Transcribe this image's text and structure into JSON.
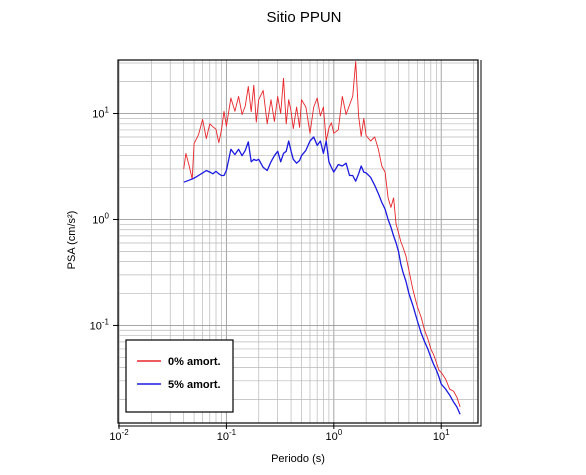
{
  "chart_data": {
    "type": "line",
    "title": "Sitio PPUN",
    "xlabel": "Periodo (s)",
    "ylabel": "PSA (cm/s²)",
    "xscale": "log",
    "yscale": "log",
    "xlim": [
      0.01,
      22
    ],
    "ylim": [
      0.012,
      32
    ],
    "grid": true,
    "legend_position": "bottom-left",
    "x_ticks": [
      {
        "base": "10",
        "exp": "-2"
      },
      {
        "base": "10",
        "exp": "-1"
      },
      {
        "base": "10",
        "exp": "0"
      },
      {
        "base": "10",
        "exp": "1"
      }
    ],
    "y_ticks": [
      {
        "base": "10",
        "exp": "-1"
      },
      {
        "base": "10",
        "exp": "0"
      },
      {
        "base": "10",
        "exp": "1"
      }
    ],
    "series": [
      {
        "name": "0% amort.",
        "color": "#e8262a",
        "x": [
          0.04,
          0.042,
          0.045,
          0.048,
          0.05,
          0.055,
          0.06,
          0.065,
          0.07,
          0.075,
          0.08,
          0.085,
          0.09,
          0.095,
          0.1,
          0.11,
          0.12,
          0.13,
          0.14,
          0.15,
          0.16,
          0.17,
          0.18,
          0.19,
          0.2,
          0.22,
          0.24,
          0.26,
          0.28,
          0.3,
          0.32,
          0.34,
          0.36,
          0.38,
          0.4,
          0.42,
          0.45,
          0.48,
          0.5,
          0.55,
          0.6,
          0.65,
          0.7,
          0.75,
          0.8,
          0.85,
          0.9,
          0.95,
          1.0,
          1.1,
          1.2,
          1.3,
          1.4,
          1.5,
          1.6,
          1.7,
          1.8,
          1.9,
          2.0,
          2.2,
          2.4,
          2.6,
          2.8,
          3.0,
          3.2,
          3.4,
          3.6,
          3.8,
          4.0,
          4.2,
          4.4,
          4.7,
          5.0,
          5.5,
          6.0,
          6.5,
          7.0,
          7.5,
          8.0,
          8.5,
          9.0,
          9.5,
          10.0,
          11.0,
          12.0,
          13.0,
          14.0,
          15.0
        ],
        "y": [
          3.0,
          4.2,
          3.2,
          2.4,
          5.2,
          6.3,
          8.8,
          5.8,
          8.0,
          7.5,
          7.1,
          5.3,
          7.0,
          10.5,
          7.6,
          14.0,
          10.5,
          14.5,
          9.8,
          11.8,
          18.0,
          10.4,
          18.5,
          8.3,
          13.5,
          16.5,
          8.0,
          13.5,
          8.4,
          14.5,
          10.0,
          21.5,
          8.0,
          13.5,
          10.5,
          7.2,
          11.5,
          7.4,
          13.5,
          11.5,
          6.5,
          11.5,
          14.0,
          9.5,
          11.5,
          5.5,
          7.3,
          8.2,
          6.5,
          7.0,
          14.5,
          9.8,
          12.0,
          14.5,
          31.0,
          9.5,
          6.1,
          9.0,
          6.2,
          5.5,
          6.0,
          4.6,
          3.2,
          2.8,
          1.6,
          1.3,
          1.6,
          0.9,
          0.75,
          0.62,
          0.55,
          0.45,
          0.33,
          0.21,
          0.15,
          0.12,
          0.09,
          0.075,
          0.06,
          0.053,
          0.045,
          0.038,
          0.036,
          0.031,
          0.025,
          0.024,
          0.021,
          0.017
        ]
      },
      {
        "name": "5% amort.",
        "color": "#1a1ae0",
        "x": [
          0.04,
          0.045,
          0.05,
          0.055,
          0.06,
          0.065,
          0.07,
          0.075,
          0.08,
          0.085,
          0.09,
          0.095,
          0.1,
          0.11,
          0.12,
          0.13,
          0.14,
          0.15,
          0.16,
          0.17,
          0.18,
          0.19,
          0.2,
          0.22,
          0.24,
          0.26,
          0.28,
          0.3,
          0.32,
          0.34,
          0.36,
          0.38,
          0.4,
          0.42,
          0.45,
          0.48,
          0.5,
          0.55,
          0.6,
          0.65,
          0.7,
          0.75,
          0.8,
          0.85,
          0.9,
          0.95,
          1.0,
          1.1,
          1.2,
          1.3,
          1.4,
          1.5,
          1.6,
          1.7,
          1.8,
          1.9,
          2.0,
          2.2,
          2.4,
          2.6,
          2.8,
          3.0,
          3.2,
          3.4,
          3.6,
          3.8,
          4.0,
          4.2,
          4.4,
          4.7,
          5.0,
          5.5,
          6.0,
          6.5,
          7.0,
          7.5,
          8.0,
          8.5,
          9.0,
          9.5,
          10.0,
          11.0,
          12.0,
          13.0,
          14.0,
          15.0
        ],
        "y": [
          2.25,
          2.35,
          2.45,
          2.6,
          2.75,
          2.9,
          2.8,
          2.7,
          2.85,
          2.7,
          2.6,
          2.6,
          2.9,
          4.6,
          4.1,
          4.6,
          4.0,
          4.5,
          5.4,
          3.5,
          3.7,
          3.6,
          3.7,
          3.1,
          2.9,
          3.5,
          4.0,
          4.4,
          3.5,
          4.2,
          4.4,
          5.5,
          4.4,
          3.7,
          3.4,
          3.6,
          4.0,
          4.5,
          5.5,
          6.0,
          5.0,
          5.5,
          4.2,
          5.5,
          3.5,
          3.1,
          2.8,
          3.3,
          3.2,
          3.4,
          2.6,
          2.6,
          2.3,
          2.7,
          3.2,
          2.8,
          2.75,
          2.5,
          2.1,
          1.75,
          1.45,
          1.25,
          1.0,
          0.85,
          0.7,
          0.6,
          0.5,
          0.38,
          0.32,
          0.26,
          0.2,
          0.15,
          0.11,
          0.085,
          0.07,
          0.06,
          0.05,
          0.043,
          0.038,
          0.033,
          0.028,
          0.025,
          0.022,
          0.019,
          0.017,
          0.0145
        ]
      }
    ]
  }
}
